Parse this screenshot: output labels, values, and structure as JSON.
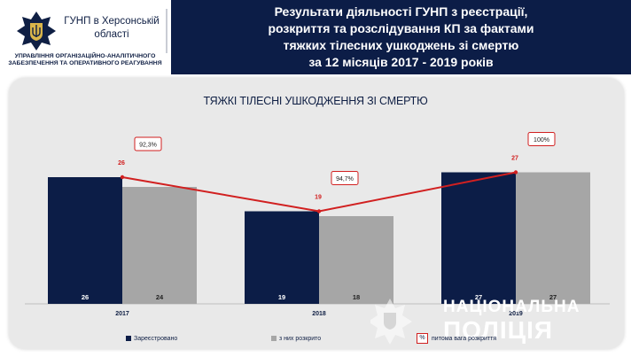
{
  "header": {
    "org_title_line1": "ГУНП в Херсонській",
    "org_title_line2": "області",
    "dept_line1": "УПРАВЛІННЯ ОРГАНІЗАЦІЙНО-АНАЛІТИЧНОГО",
    "dept_line2": "ЗАБЕЗПЕЧЕННЯ ТА ОПЕРАТИВНОГО РЕАГУВАННЯ",
    "title_line1": "Результати діяльності ГУНП з реєстрації,",
    "title_line2": "розкриття та розслідування КП за фактами",
    "title_line3": "тяжких тілесних ушкоджень зі смертю",
    "title_line4": "за  12 місяців 2017 - 2019 років",
    "colors": {
      "navy": "#0c1d47",
      "gray": "#a6a6a6",
      "line": "#d12020"
    }
  },
  "chart_data": {
    "type": "bar",
    "title": "ТЯЖКІ ТІЛЕСНІ УШКОДЖЕННЯ ЗІ СМЕРТЮ",
    "categories": [
      "2017",
      "2018",
      "2019"
    ],
    "series": [
      {
        "name": "Зареєстровано",
        "values": [
          26,
          19,
          27
        ],
        "color": "#0c1d47"
      },
      {
        "name": "з них розкрито",
        "values": [
          24,
          18,
          27
        ],
        "color": "#a6a6a6"
      }
    ],
    "line_series": {
      "values": [
        26,
        19,
        27
      ],
      "color": "#d12020"
    },
    "percent_labels": [
      "92,3%",
      "94,7%",
      "100%"
    ],
    "percent_legend_symbol": "%",
    "percent_legend_label": "питома вага розкриття",
    "ylim": [
      0,
      30
    ]
  },
  "watermark": {
    "line1": "НАЦІОНАЛЬНА",
    "line2": "ПОЛІЦІЯ"
  }
}
